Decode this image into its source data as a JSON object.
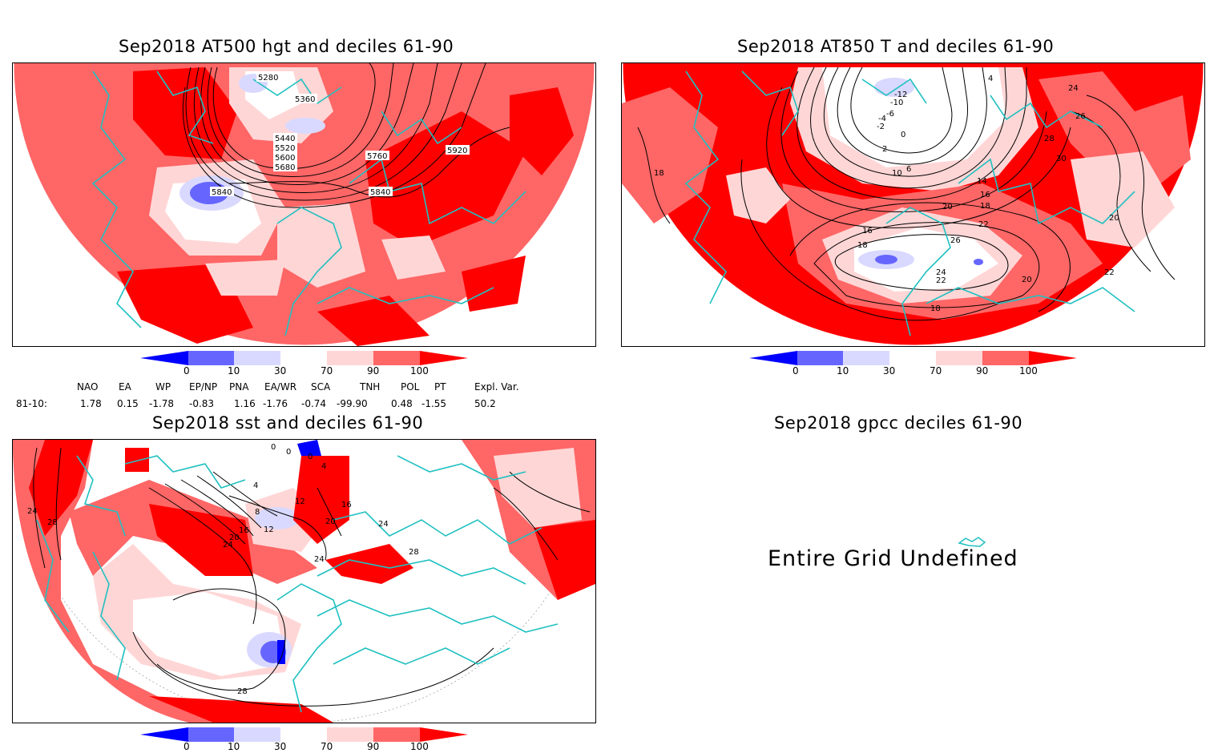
{
  "panels": [
    {
      "title": "Sep2018 AT500 hgt and deciles 61-90",
      "contour_labels": [
        "5280",
        "5360",
        "5440",
        "5520",
        "5600",
        "5680",
        "5760",
        "5840",
        "5840",
        "5920"
      ]
    },
    {
      "title": "Sep2018 AT850 T and deciles 61-90",
      "contour_labels": [
        "-12",
        "-10",
        "-6",
        "-4",
        "-2",
        "0",
        "2",
        "4",
        "6",
        "10",
        "14",
        "16",
        "16",
        "18",
        "18",
        "18",
        "18",
        "20",
        "20",
        "20",
        "22",
        "22",
        "22",
        "24",
        "24",
        "26",
        "26",
        "28",
        "30"
      ]
    },
    {
      "title": "Sep2018 sst and deciles 61-90",
      "contour_labels": [
        "0",
        "0",
        "0",
        "4",
        "4",
        "8",
        "12",
        "16",
        "20",
        "24",
        "24",
        "28",
        "28",
        "24",
        "20",
        "16",
        "12",
        "24",
        "28"
      ]
    },
    {
      "title": "Sep2018 gpcc deciles 61-90",
      "message": "Entire Grid Undefined"
    }
  ],
  "colorbar": {
    "ticks": [
      "0",
      "10",
      "30",
      "70",
      "90",
      "100"
    ],
    "colors": [
      "#0000ff",
      "#6666ff",
      "#d9d9ff",
      "#ffffff",
      "#ffd6d6",
      "#ff6666",
      "#ff0000"
    ]
  },
  "indices": {
    "headers": [
      "NAO",
      "EA",
      "WP",
      "EP/NP",
      "PNA",
      "EA/WR",
      "SCA",
      "TNH",
      "POL",
      "PT",
      "Expl. Var."
    ],
    "row_label": "81-10:",
    "values": [
      "1.78",
      "0.15",
      "-1.78",
      "-0.83",
      "1.16",
      "-1.76",
      "-0.74",
      "-99.90",
      "0.48",
      "-1.55",
      "50.2"
    ]
  }
}
